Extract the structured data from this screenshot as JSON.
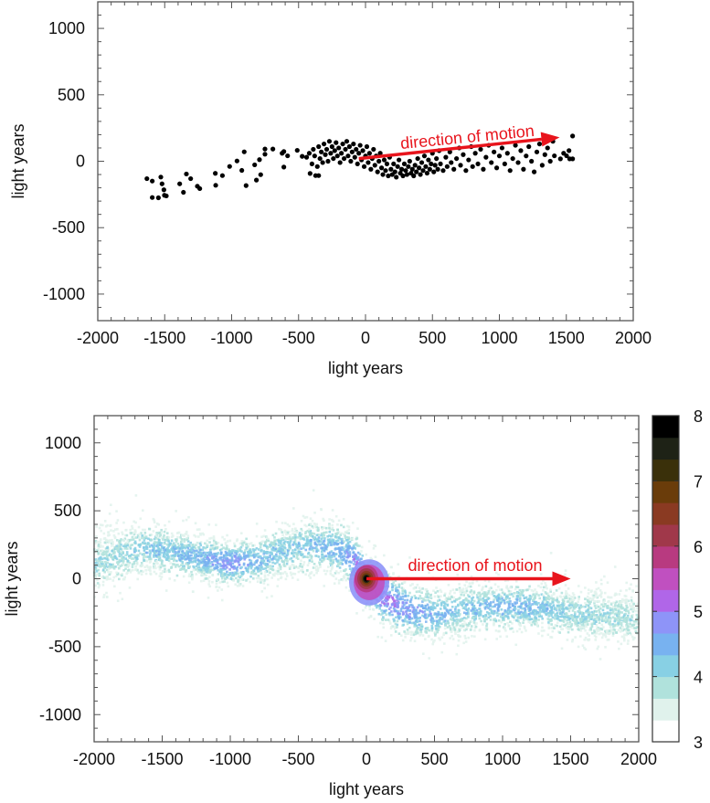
{
  "chart_data": [
    {
      "type": "scatter",
      "xlabel": "light years",
      "ylabel": "light years",
      "xlim": [
        -2000,
        2000
      ],
      "ylim": [
        -1200,
        1200
      ],
      "xticks": [
        "-2000",
        "-1500",
        "-1000",
        "-500",
        "0",
        "500",
        "1000",
        "1500",
        "2000"
      ],
      "yticks": [
        "1000",
        "500",
        "0",
        "-500",
        "-1000"
      ],
      "grid": false,
      "marker_color": "#000000",
      "annotation": {
        "text": "direction of motion",
        "color": "#e8141c",
        "arrow_from": [
          -50,
          20
        ],
        "arrow_to": [
          1450,
          180
        ]
      },
      "points": [
        [
          -1633,
          -131
        ],
        [
          -1593,
          -149
        ],
        [
          -1529,
          -119
        ],
        [
          -1520,
          -170
        ],
        [
          -1506,
          -215
        ],
        [
          -1593,
          -273
        ],
        [
          -1547,
          -275
        ],
        [
          -1502,
          -256
        ],
        [
          -1488,
          -261
        ],
        [
          -1388,
          -170
        ],
        [
          -1360,
          -234
        ],
        [
          -1338,
          -96
        ],
        [
          -1306,
          -131
        ],
        [
          -1256,
          -188
        ],
        [
          -1238,
          -206
        ],
        [
          -1122,
          -91
        ],
        [
          -1119,
          -181
        ],
        [
          -1069,
          -108
        ],
        [
          -1015,
          -39
        ],
        [
          -960,
          2
        ],
        [
          -924,
          -69
        ],
        [
          -906,
          71
        ],
        [
          -892,
          -183
        ],
        [
          -828,
          -27
        ],
        [
          -792,
          12
        ],
        [
          -783,
          -101
        ],
        [
          -815,
          -142
        ],
        [
          -751,
          92
        ],
        [
          -751,
          53
        ],
        [
          -692,
          92
        ],
        [
          -623,
          60
        ],
        [
          -610,
          73
        ],
        [
          -610,
          -44
        ],
        [
          -582,
          41
        ],
        [
          -510,
          82
        ],
        [
          -473,
          37
        ],
        [
          -414,
          -92
        ],
        [
          -373,
          -108
        ],
        [
          -350,
          -108
        ],
        [
          -440,
          30
        ],
        [
          -420,
          60
        ],
        [
          -400,
          -20
        ],
        [
          -390,
          90
        ],
        [
          -380,
          40
        ],
        [
          -360,
          -40
        ],
        [
          -350,
          110
        ],
        [
          -340,
          20
        ],
        [
          -330,
          70
        ],
        [
          -320,
          -10
        ],
        [
          -310,
          130
        ],
        [
          -300,
          50
        ],
        [
          -290,
          90
        ],
        [
          -280,
          0
        ],
        [
          -270,
          150
        ],
        [
          -260,
          60
        ],
        [
          -250,
          110
        ],
        [
          -240,
          20
        ],
        [
          -230,
          80
        ],
        [
          -220,
          140
        ],
        [
          -210,
          40
        ],
        [
          -200,
          100
        ],
        [
          -190,
          -10
        ],
        [
          -180,
          60
        ],
        [
          -170,
          130
        ],
        [
          -160,
          20
        ],
        [
          -150,
          90
        ],
        [
          -140,
          150
        ],
        [
          -130,
          40
        ],
        [
          -120,
          110
        ],
        [
          -110,
          0
        ],
        [
          -100,
          70
        ],
        [
          -90,
          130
        ],
        [
          -80,
          30
        ],
        [
          -70,
          90
        ],
        [
          -60,
          -20
        ],
        [
          -50,
          60
        ],
        [
          -40,
          120
        ],
        [
          -30,
          10
        ],
        [
          -20,
          80
        ],
        [
          -10,
          -40
        ],
        [
          0,
          40
        ],
        [
          10,
          110
        ],
        [
          20,
          -10
        ],
        [
          30,
          60
        ],
        [
          40,
          -60
        ],
        [
          50,
          20
        ],
        [
          60,
          90
        ],
        [
          70,
          -30
        ],
        [
          80,
          40
        ],
        [
          90,
          -80
        ],
        [
          100,
          0
        ],
        [
          110,
          60
        ],
        [
          120,
          -50
        ],
        [
          130,
          -100
        ],
        [
          140,
          10
        ],
        [
          150,
          -70
        ],
        [
          160,
          -20
        ],
        [
          170,
          -110
        ],
        [
          180,
          30
        ],
        [
          190,
          -60
        ],
        [
          200,
          -100
        ],
        [
          210,
          -20
        ],
        [
          220,
          -80
        ],
        [
          230,
          -120
        ],
        [
          240,
          -40
        ],
        [
          250,
          10
        ],
        [
          260,
          -90
        ],
        [
          270,
          -60
        ],
        [
          280,
          -110
        ],
        [
          290,
          -20
        ],
        [
          300,
          -70
        ],
        [
          310,
          -100
        ],
        [
          320,
          -40
        ],
        [
          330,
          0
        ],
        [
          340,
          -90
        ],
        [
          350,
          -60
        ],
        [
          360,
          -110
        ],
        [
          370,
          -30
        ],
        [
          380,
          -80
        ],
        [
          390,
          20
        ],
        [
          400,
          -50
        ],
        [
          410,
          -100
        ],
        [
          420,
          -10
        ],
        [
          430,
          -70
        ],
        [
          440,
          40
        ],
        [
          450,
          -40
        ],
        [
          460,
          -90
        ],
        [
          470,
          10
        ],
        [
          480,
          -60
        ],
        [
          490,
          -20
        ],
        [
          500,
          60
        ],
        [
          510,
          -80
        ],
        [
          520,
          -30
        ],
        [
          530,
          20
        ],
        [
          540,
          -60
        ],
        [
          550,
          80
        ],
        [
          560,
          -20
        ],
        [
          580,
          -70
        ],
        [
          600,
          30
        ],
        [
          610,
          -40
        ],
        [
          630,
          70
        ],
        [
          640,
          -10
        ],
        [
          660,
          -60
        ],
        [
          680,
          20
        ],
        [
          700,
          100
        ],
        [
          710,
          -30
        ],
        [
          730,
          50
        ],
        [
          750,
          -70
        ],
        [
          770,
          10
        ],
        [
          790,
          110
        ],
        [
          800,
          -40
        ],
        [
          820,
          60
        ],
        [
          840,
          -20
        ],
        [
          860,
          90
        ],
        [
          880,
          -60
        ],
        [
          900,
          30
        ],
        [
          920,
          120
        ],
        [
          940,
          -10
        ],
        [
          960,
          70
        ],
        [
          980,
          -50
        ],
        [
          1000,
          40
        ],
        [
          1020,
          100
        ],
        [
          1040,
          -20
        ],
        [
          1060,
          60
        ],
        [
          1080,
          -70
        ],
        [
          1100,
          20
        ],
        [
          1120,
          120
        ],
        [
          1140,
          -10
        ],
        [
          1160,
          80
        ],
        [
          1180,
          -60
        ],
        [
          1200,
          40
        ],
        [
          1220,
          110
        ],
        [
          1240,
          0
        ],
        [
          1260,
          -80
        ],
        [
          1280,
          70
        ],
        [
          1300,
          130
        ],
        [
          1320,
          -30
        ],
        [
          1340,
          50
        ],
        [
          1360,
          100
        ],
        [
          1380,
          0
        ],
        [
          1400,
          150
        ],
        [
          1411,
          41
        ],
        [
          1456,
          18
        ],
        [
          1502,
          41
        ],
        [
          1525,
          18
        ],
        [
          1547,
          18
        ],
        [
          1547,
          190
        ],
        [
          1520,
          80
        ],
        [
          1480,
          60
        ]
      ]
    },
    {
      "type": "heatmap",
      "xlabel": "light years",
      "ylabel": "light years",
      "xlim": [
        -2000,
        2000
      ],
      "ylim": [
        -1200,
        1200
      ],
      "xticks": [
        "-2000",
        "-1500",
        "-1000",
        "-500",
        "0",
        "500",
        "1000",
        "1500",
        "2000"
      ],
      "yticks": [
        "1000",
        "500",
        "0",
        "-500",
        "-1000"
      ],
      "grid": false,
      "annotation": {
        "text": "direction of motion",
        "color": "#e8141c",
        "arrow_from": [
          0,
          0
        ],
        "arrow_to": [
          1500,
          0
        ]
      },
      "colorbar": {
        "range": [
          3,
          8
        ],
        "ticks": [
          "3",
          "4",
          "5",
          "6",
          "7",
          "8"
        ],
        "colors": [
          "#ffffff",
          "#e0f2ec",
          "#b0e2dc",
          "#88d0e4",
          "#78b2f0",
          "#8e94f8",
          "#b066e8",
          "#c050c0",
          "#b83a80",
          "#a0384a",
          "#8a3a22",
          "#6a3c0a",
          "#3a300a",
          "#1e2216",
          "#000000"
        ]
      },
      "peak": {
        "x": 0,
        "y": 0,
        "value": 8
      },
      "ridge": [
        {
          "x": -2000,
          "y": 120,
          "spread": 130,
          "level": 4.0
        },
        {
          "x": -1800,
          "y": 180,
          "spread": 130,
          "level": 4.0
        },
        {
          "x": -1600,
          "y": 230,
          "spread": 110,
          "level": 4.2
        },
        {
          "x": -1400,
          "y": 190,
          "spread": 110,
          "level": 4.3
        },
        {
          "x": -1200,
          "y": 150,
          "spread": 100,
          "level": 4.5
        },
        {
          "x": -1000,
          "y": 110,
          "spread": 100,
          "level": 4.8
        },
        {
          "x": -800,
          "y": 130,
          "spread": 110,
          "level": 4.4
        },
        {
          "x": -600,
          "y": 200,
          "spread": 120,
          "level": 4.2
        },
        {
          "x": -400,
          "y": 250,
          "spread": 120,
          "level": 4.3
        },
        {
          "x": -200,
          "y": 210,
          "spread": 130,
          "level": 4.5
        },
        {
          "x": -100,
          "y": 140,
          "spread": 130,
          "level": 4.8
        },
        {
          "x": 0,
          "y": 0,
          "spread": 120,
          "level": 5.2
        },
        {
          "x": 100,
          "y": -120,
          "spread": 130,
          "level": 5.1
        },
        {
          "x": 300,
          "y": -230,
          "spread": 130,
          "level": 4.7
        },
        {
          "x": 500,
          "y": -270,
          "spread": 120,
          "level": 4.4
        },
        {
          "x": 700,
          "y": -230,
          "spread": 120,
          "level": 4.2
        },
        {
          "x": 900,
          "y": -210,
          "spread": 110,
          "level": 4.3
        },
        {
          "x": 1100,
          "y": -200,
          "spread": 110,
          "level": 4.5
        },
        {
          "x": 1300,
          "y": -220,
          "spread": 110,
          "level": 4.3
        },
        {
          "x": 1500,
          "y": -260,
          "spread": 110,
          "level": 4.1
        },
        {
          "x": 1700,
          "y": -270,
          "spread": 110,
          "level": 4.0
        },
        {
          "x": 1900,
          "y": -280,
          "spread": 110,
          "level": 3.9
        },
        {
          "x": 2000,
          "y": -300,
          "spread": 100,
          "level": 3.8
        }
      ]
    }
  ]
}
